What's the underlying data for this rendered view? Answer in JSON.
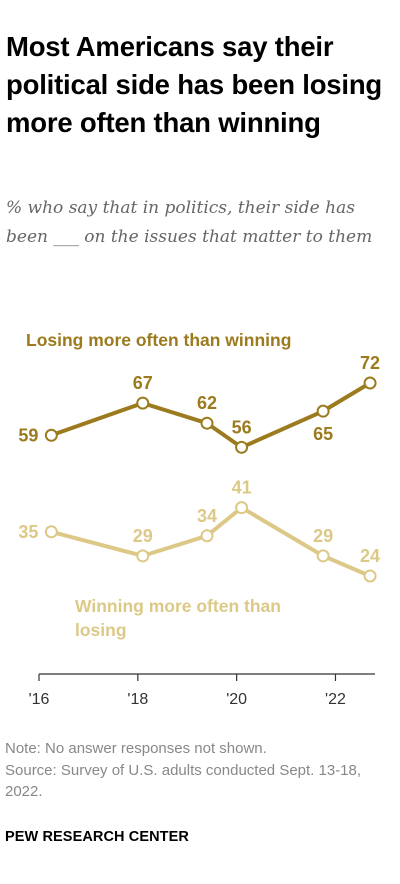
{
  "title": "Most Americans say their political side has been losing more often than winning",
  "subtitle": "% who say that in politics, their side has been ___ on the issues that matter to them",
  "chart_data": {
    "type": "line",
    "x": [
      2016.25,
      2018.1,
      2019.4,
      2020.1,
      2021.75,
      2022.7
    ],
    "x_ticks": [
      2016,
      2018,
      2020,
      2022
    ],
    "x_tick_labels": [
      "'16",
      "'18",
      "'20",
      "'22"
    ],
    "xlim": [
      2016,
      2022.8
    ],
    "ylim": [
      24,
      72
    ],
    "grid": false,
    "series": [
      {
        "name": "Losing more often than winning",
        "color": "#9b7b1e",
        "values": [
          59,
          67,
          62,
          56,
          65,
          72
        ],
        "label_positions": [
          "left",
          "above",
          "above",
          "above",
          "below",
          "above"
        ]
      },
      {
        "name": "Winning more often than losing",
        "color": "#ddc987",
        "values": [
          35,
          29,
          34,
          41,
          29,
          24
        ],
        "label_positions": [
          "left",
          "above",
          "above",
          "above",
          "above",
          "above"
        ]
      }
    ]
  },
  "footer": {
    "note": "Note: No answer responses not shown.",
    "source": "Source: Survey of U.S. adults conducted Sept. 13-18, 2022."
  },
  "brand": "PEW RESEARCH CENTER"
}
